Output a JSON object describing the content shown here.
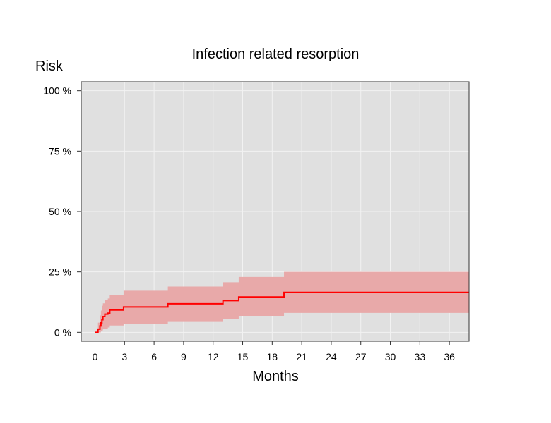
{
  "chart_data": {
    "type": "line",
    "title": "Infection related resorption",
    "ylabel": "Risk",
    "xlabel": "Months",
    "x_ticks": [
      0,
      3,
      6,
      9,
      12,
      15,
      18,
      21,
      24,
      27,
      30,
      33,
      36
    ],
    "y_ticks": [
      0,
      25,
      50,
      75,
      100
    ],
    "y_tick_labels": [
      "0 %",
      "25 %",
      "50 %",
      "75 %",
      "100 %"
    ],
    "xlim": [
      -1.4,
      38.0
    ],
    "ylim": [
      -3.7,
      103.7
    ],
    "grid": true,
    "series": [
      {
        "color": "#ff0000",
        "band_color": "#e8a9a9",
        "x": [
          0,
          0.3,
          0.5,
          0.6,
          0.7,
          0.8,
          0.9,
          1.0,
          1.3,
          1.5,
          2.9,
          7.4,
          13.0,
          14.6,
          19.2,
          38.0
        ],
        "y": [
          0,
          1.3,
          2.6,
          3.9,
          5.2,
          6.5,
          6.5,
          7.5,
          7.9,
          9.2,
          10.5,
          11.8,
          13.1,
          14.6,
          16.5,
          16.5
        ],
        "lower": [
          0,
          0,
          0,
          0.4,
          0.8,
          1.3,
          1.3,
          1.5,
          2.0,
          2.8,
          3.6,
          4.3,
          5.6,
          6.8,
          8.0,
          8.0
        ],
        "upper": [
          0,
          4.0,
          7.0,
          9.0,
          11.0,
          12.0,
          12.0,
          13.5,
          14.0,
          15.5,
          17.2,
          18.9,
          20.7,
          22.9,
          25.0,
          25.0
        ]
      }
    ]
  }
}
